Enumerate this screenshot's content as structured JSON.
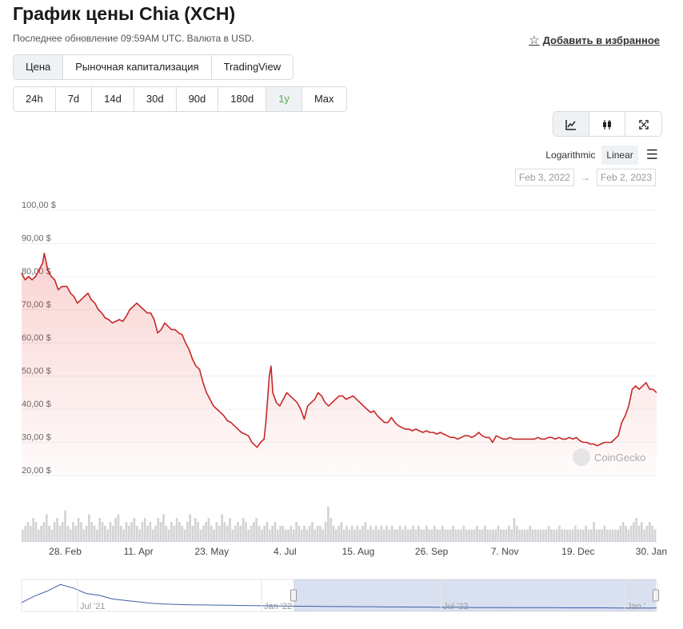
{
  "header": {
    "title": "График цены Chia (XCH)",
    "subtitle": "Последнее обновление 09:59AM UTC. Валюта в USD.",
    "favorite_label": "Добавить в избранное",
    "star_icon": "star-outline-icon"
  },
  "tabs": [
    {
      "label": "Цена",
      "active": true
    },
    {
      "label": "Рыночная капитализация",
      "active": false
    },
    {
      "label": "TradingView",
      "active": false
    }
  ],
  "ranges": [
    {
      "label": "24h",
      "active": false
    },
    {
      "label": "7d",
      "active": false
    },
    {
      "label": "14d",
      "active": false
    },
    {
      "label": "30d",
      "active": false
    },
    {
      "label": "90d",
      "active": false
    },
    {
      "label": "180d",
      "active": false
    },
    {
      "label": "1y",
      "active": true
    },
    {
      "label": "Max",
      "active": false
    }
  ],
  "tools": {
    "line_icon": "line-chart-icon",
    "candle_icon": "candlestick-icon",
    "fullscreen_icon": "fullscreen-icon"
  },
  "scale": {
    "logarithmic": "Logarithmic",
    "linear": "Linear",
    "menu_icon": "hamburger-menu-icon"
  },
  "date_range": {
    "from": "Feb 3, 2022",
    "arrow": "→",
    "to": "Feb 2, 2023"
  },
  "watermark": "CoinGecko",
  "chart_data": {
    "type": "area",
    "x_tick_labels": [
      "28. Feb",
      "11. Apr",
      "23. May",
      "4. Jul",
      "15. Aug",
      "26. Sep",
      "7. Nov",
      "19. Dec",
      "30. Jan"
    ],
    "y_tick_labels": [
      "100,00 $",
      "90,00 $",
      "80,00 $",
      "70,00 $",
      "60,00 $",
      "50,00 $",
      "40,00 $",
      "30,00 $",
      "20,00 $"
    ],
    "y_ticks": [
      100,
      90,
      80,
      70,
      60,
      50,
      40,
      30,
      20
    ],
    "ylim": [
      20,
      100
    ],
    "x_range_days": [
      0,
      364
    ],
    "x_tick_days": [
      25,
      67,
      109,
      151,
      193,
      235,
      277,
      319,
      361
    ],
    "grid": true,
    "series": [
      {
        "color": "#c62828",
        "points": [
          [
            0,
            81
          ],
          [
            2,
            79
          ],
          [
            4,
            80
          ],
          [
            6,
            79
          ],
          [
            8,
            80
          ],
          [
            10,
            82
          ],
          [
            12,
            84
          ],
          [
            13,
            87
          ],
          [
            15,
            82
          ],
          [
            17,
            80
          ],
          [
            19,
            79
          ],
          [
            21,
            76
          ],
          [
            23,
            77
          ],
          [
            26,
            77
          ],
          [
            28,
            75
          ],
          [
            30,
            74
          ],
          [
            32,
            72
          ],
          [
            34,
            73
          ],
          [
            36,
            74
          ],
          [
            38,
            75
          ],
          [
            40,
            73
          ],
          [
            42,
            72
          ],
          [
            44,
            70
          ],
          [
            46,
            69
          ],
          [
            48,
            67.5
          ],
          [
            50,
            67
          ],
          [
            52,
            66
          ],
          [
            54,
            66.5
          ],
          [
            56,
            67
          ],
          [
            58,
            66.5
          ],
          [
            60,
            68
          ],
          [
            62,
            70
          ],
          [
            64,
            71
          ],
          [
            66,
            72
          ],
          [
            68,
            71
          ],
          [
            70,
            70
          ],
          [
            72,
            69
          ],
          [
            74,
            69
          ],
          [
            76,
            67
          ],
          [
            78,
            63
          ],
          [
            80,
            64
          ],
          [
            82,
            66
          ],
          [
            84,
            65
          ],
          [
            86,
            64
          ],
          [
            88,
            64
          ],
          [
            90,
            63
          ],
          [
            92,
            62.5
          ],
          [
            94,
            60
          ],
          [
            96,
            58
          ],
          [
            98,
            55
          ],
          [
            100,
            53
          ],
          [
            102,
            52
          ],
          [
            104,
            48
          ],
          [
            106,
            45
          ],
          [
            108,
            43
          ],
          [
            110,
            41
          ],
          [
            112,
            40
          ],
          [
            114,
            39
          ],
          [
            116,
            38
          ],
          [
            118,
            36.5
          ],
          [
            120,
            36
          ],
          [
            122,
            35
          ],
          [
            124,
            34
          ],
          [
            126,
            33
          ],
          [
            128,
            32.5
          ],
          [
            130,
            32
          ],
          [
            132,
            30
          ],
          [
            134,
            29
          ],
          [
            135,
            28.5
          ],
          [
            137,
            30
          ],
          [
            139,
            31
          ],
          [
            140,
            36
          ],
          [
            141,
            43
          ],
          [
            142,
            50
          ],
          [
            143,
            53
          ],
          [
            144,
            45
          ],
          [
            146,
            42
          ],
          [
            148,
            41
          ],
          [
            150,
            43
          ],
          [
            152,
            45
          ],
          [
            154,
            44
          ],
          [
            156,
            43
          ],
          [
            158,
            42
          ],
          [
            160,
            40
          ],
          [
            162,
            37
          ],
          [
            164,
            41
          ],
          [
            166,
            42
          ],
          [
            168,
            43
          ],
          [
            170,
            45
          ],
          [
            172,
            44
          ],
          [
            174,
            42
          ],
          [
            176,
            41
          ],
          [
            178,
            42
          ],
          [
            180,
            43
          ],
          [
            182,
            44
          ],
          [
            184,
            44
          ],
          [
            186,
            43
          ],
          [
            188,
            43.5
          ],
          [
            190,
            44
          ],
          [
            192,
            43
          ],
          [
            194,
            42
          ],
          [
            196,
            41
          ],
          [
            198,
            40
          ],
          [
            200,
            39
          ],
          [
            202,
            39.5
          ],
          [
            204,
            38
          ],
          [
            206,
            37
          ],
          [
            208,
            36
          ],
          [
            210,
            36
          ],
          [
            212,
            37.5
          ],
          [
            214,
            36
          ],
          [
            216,
            35
          ],
          [
            218,
            34.5
          ],
          [
            220,
            34
          ],
          [
            222,
            34
          ],
          [
            224,
            33.5
          ],
          [
            226,
            34
          ],
          [
            228,
            33.5
          ],
          [
            230,
            33
          ],
          [
            232,
            33.5
          ],
          [
            234,
            33
          ],
          [
            236,
            33
          ],
          [
            238,
            32.5
          ],
          [
            240,
            33
          ],
          [
            242,
            32.5
          ],
          [
            244,
            32
          ],
          [
            246,
            31.5
          ],
          [
            248,
            31.5
          ],
          [
            250,
            31
          ],
          [
            252,
            31.5
          ],
          [
            254,
            32
          ],
          [
            256,
            32
          ],
          [
            258,
            31.5
          ],
          [
            260,
            32
          ],
          [
            262,
            33
          ],
          [
            264,
            32
          ],
          [
            266,
            31.5
          ],
          [
            268,
            31.5
          ],
          [
            270,
            30
          ],
          [
            272,
            32
          ],
          [
            274,
            31.5
          ],
          [
            276,
            31
          ],
          [
            278,
            31
          ],
          [
            280,
            31.5
          ],
          [
            282,
            31
          ],
          [
            284,
            31
          ],
          [
            286,
            31
          ],
          [
            288,
            31
          ],
          [
            290,
            31
          ],
          [
            292,
            31
          ],
          [
            294,
            31
          ],
          [
            296,
            31.5
          ],
          [
            298,
            31
          ],
          [
            300,
            31
          ],
          [
            302,
            31.5
          ],
          [
            304,
            31.5
          ],
          [
            306,
            31
          ],
          [
            308,
            31.5
          ],
          [
            310,
            31
          ],
          [
            312,
            31
          ],
          [
            314,
            31.5
          ],
          [
            316,
            31
          ],
          [
            318,
            31.5
          ],
          [
            320,
            30.5
          ],
          [
            322,
            30
          ],
          [
            324,
            30
          ],
          [
            326,
            29.5
          ],
          [
            328,
            29.5
          ],
          [
            330,
            29
          ],
          [
            332,
            29.5
          ],
          [
            334,
            30
          ],
          [
            336,
            30
          ],
          [
            338,
            30
          ],
          [
            340,
            31
          ],
          [
            342,
            32
          ],
          [
            344,
            36
          ],
          [
            346,
            38
          ],
          [
            348,
            41
          ],
          [
            350,
            46
          ],
          [
            352,
            47
          ],
          [
            354,
            46
          ],
          [
            356,
            47
          ],
          [
            358,
            48
          ],
          [
            360,
            46
          ],
          [
            362,
            46
          ],
          [
            364,
            45
          ]
        ]
      }
    ],
    "volume": [
      3,
      4,
      5,
      4,
      6,
      5,
      3,
      4,
      5,
      7,
      4,
      3,
      5,
      6,
      4,
      5,
      8,
      4,
      3,
      5,
      4,
      6,
      5,
      3,
      4,
      7,
      5,
      4,
      3,
      6,
      5,
      4,
      3,
      5,
      4,
      6,
      7,
      4,
      3,
      5,
      4,
      5,
      6,
      4,
      3,
      5,
      6,
      4,
      5,
      3,
      4,
      6,
      5,
      7,
      4,
      3,
      5,
      4,
      6,
      5,
      4,
      3,
      5,
      7,
      4,
      6,
      5,
      3,
      4,
      5,
      6,
      4,
      3,
      5,
      4,
      7,
      5,
      4,
      6,
      3,
      4,
      5,
      4,
      6,
      5,
      3,
      4,
      5,
      6,
      4,
      3,
      4,
      5,
      3,
      4,
      5,
      3,
      4,
      4,
      3,
      3,
      4,
      3,
      5,
      4,
      3,
      4,
      3,
      4,
      5,
      3,
      4,
      4,
      3,
      5,
      9,
      6,
      4,
      3,
      4,
      5,
      3,
      4,
      3,
      4,
      3,
      4,
      3,
      4,
      5,
      3,
      4,
      3,
      4,
      3,
      4,
      3,
      4,
      3,
      4,
      3,
      3,
      4,
      3,
      4,
      3,
      3,
      4,
      3,
      4,
      3,
      3,
      4,
      3,
      3,
      4,
      3,
      3,
      4,
      3,
      3,
      3,
      4,
      3,
      3,
      3,
      4,
      3,
      3,
      3,
      3,
      4,
      3,
      3,
      4,
      3,
      3,
      3,
      3,
      4,
      3,
      3,
      3,
      4,
      3,
      6,
      4,
      3,
      3,
      3,
      3,
      4,
      3,
      3,
      3,
      3,
      3,
      3,
      4,
      3,
      3,
      3,
      4,
      3,
      3,
      3,
      3,
      3,
      4,
      3,
      3,
      3,
      4,
      3,
      3,
      5,
      3,
      3,
      3,
      4,
      3,
      3,
      3,
      3,
      3,
      4,
      5,
      4,
      3,
      4,
      5,
      6,
      4,
      5,
      3,
      4,
      5,
      4,
      3
    ],
    "navigator": {
      "tick_labels": [
        "Jul '21",
        "Jan '22",
        "Jul '22",
        "Jan '..."
      ],
      "history": [
        20,
        38,
        52,
        70,
        60,
        45,
        40,
        30,
        26,
        22,
        18,
        16,
        15,
        14,
        13.5,
        13,
        12.5,
        12,
        11.5,
        11,
        10.5,
        10,
        10,
        9.5,
        9,
        9,
        8.5,
        8.5,
        8,
        8,
        7.5,
        7.5,
        7,
        7,
        7,
        6.5,
        6.5,
        6.5,
        6,
        6,
        6,
        6,
        5.5,
        5.5,
        5.5,
        5.5,
        5,
        5,
        5,
        5
      ]
    }
  }
}
